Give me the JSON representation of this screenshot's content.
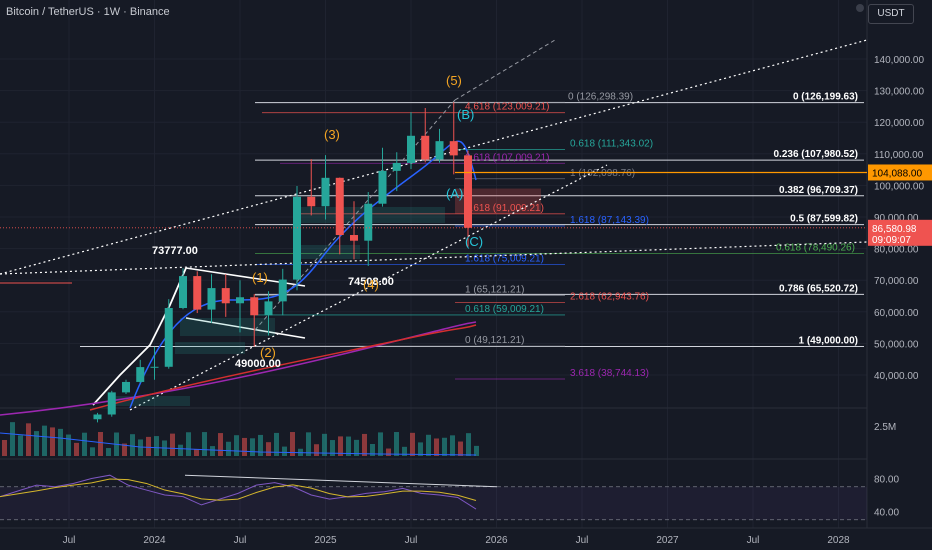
{
  "header": {
    "title": "Bitcoin / TetherUS · 1W · Binance",
    "currency": "USDT"
  },
  "colors": {
    "background": "#161a25",
    "up": "#26a69a",
    "down": "#ef5350",
    "ma_blue": "#2962ff",
    "ma_red": "#d32f2f",
    "ma_purple": "#9c27b0",
    "rsi": "#d4b62c",
    "wave_orange": "#f5a623",
    "wave_cyan": "#26c6da",
    "current_level": "#ff9800"
  },
  "chart_data": [
    {
      "type": "candlestick",
      "pair": "BTC/USDT",
      "interval": "1W",
      "ylim": [
        33000,
        150000
      ],
      "xlim": [
        "2023-06",
        "2028-03"
      ],
      "x_ticks": [
        "Jul",
        "2024",
        "Jul",
        "2025",
        "Jul",
        "2026",
        "Jul",
        "2027",
        "Jul",
        "2028"
      ],
      "y_ticks": [
        "140,000.00",
        "130,000.00",
        "120,000.00",
        "110,000.00",
        "100,000.00",
        "90,000.00",
        "80,000.00",
        "70,000.00",
        "60,000.00",
        "50,000.00",
        "40,000.00"
      ],
      "current_price": "86,580.98",
      "countdown": "09:09:07",
      "level_label": "104,088.00",
      "candles": [
        {
          "t": "2023-09",
          "o": 26000,
          "h": 28000,
          "l": 25000,
          "c": 27500
        },
        {
          "t": "2023-10",
          "o": 27500,
          "h": 35000,
          "l": 26800,
          "c": 34500
        },
        {
          "t": "2023-11",
          "o": 34500,
          "h": 38500,
          "l": 34000,
          "c": 37800
        },
        {
          "t": "2023-12",
          "o": 37800,
          "h": 44800,
          "l": 37500,
          "c": 42500
        },
        {
          "t": "2024-01",
          "o": 42500,
          "h": 48900,
          "l": 38500,
          "c": 42600
        },
        {
          "t": "2024-02",
          "o": 42600,
          "h": 64000,
          "l": 42000,
          "c": 61200
        },
        {
          "t": "2024-03",
          "o": 61200,
          "h": 73777,
          "l": 60800,
          "c": 71300
        },
        {
          "t": "2024-04",
          "o": 71300,
          "h": 72800,
          "l": 59600,
          "c": 60700
        },
        {
          "t": "2024-05",
          "o": 60700,
          "h": 71900,
          "l": 56500,
          "c": 67500
        },
        {
          "t": "2024-06",
          "o": 67500,
          "h": 71900,
          "l": 58400,
          "c": 62700
        },
        {
          "t": "2024-07",
          "o": 62700,
          "h": 70000,
          "l": 53500,
          "c": 64600
        },
        {
          "t": "2024-08",
          "o": 64600,
          "h": 65600,
          "l": 49000,
          "c": 58900
        },
        {
          "t": "2024-09",
          "o": 58900,
          "h": 66500,
          "l": 52500,
          "c": 63300
        },
        {
          "t": "2024-10",
          "o": 63300,
          "h": 73600,
          "l": 58900,
          "c": 70200
        },
        {
          "t": "2024-11",
          "o": 70200,
          "h": 99800,
          "l": 66800,
          "c": 96400
        },
        {
          "t": "2024-12",
          "o": 96400,
          "h": 108300,
          "l": 90500,
          "c": 93400
        },
        {
          "t": "2025-01",
          "o": 93400,
          "h": 109600,
          "l": 89200,
          "c": 102400
        },
        {
          "t": "2025-02",
          "o": 102400,
          "h": 102500,
          "l": 78200,
          "c": 84300
        },
        {
          "t": "2025-03",
          "o": 84300,
          "h": 95000,
          "l": 76600,
          "c": 82500
        },
        {
          "t": "2025-04",
          "o": 82500,
          "h": 97900,
          "l": 74508,
          "c": 94200
        },
        {
          "t": "2025-05",
          "o": 94200,
          "h": 111900,
          "l": 93300,
          "c": 104600
        },
        {
          "t": "2025-06",
          "o": 104600,
          "h": 110500,
          "l": 98200,
          "c": 107100
        },
        {
          "t": "2025-07",
          "o": 107100,
          "h": 123200,
          "l": 105200,
          "c": 115700
        },
        {
          "t": "2025-08",
          "o": 115700,
          "h": 124500,
          "l": 107300,
          "c": 108200
        },
        {
          "t": "2025-09",
          "o": 108200,
          "h": 117900,
          "l": 107200,
          "c": 114000
        },
        {
          "t": "2025-10",
          "o": 114000,
          "h": 126298,
          "l": 103500,
          "c": 109500
        },
        {
          "t": "2025-11",
          "o": 109500,
          "h": 111000,
          "l": 80600,
          "c": 86580.98
        }
      ],
      "fib_levels": [
        {
          "ratio": "0",
          "price": 126199.63,
          "label": "0 (126,199.63)"
        },
        {
          "ratio": "0.236",
          "price": 107980.52,
          "label": "0.236 (107,980.52)"
        },
        {
          "ratio": "0.382",
          "price": 96709.37,
          "label": "0.382 (96,709.37)"
        },
        {
          "ratio": "0.5",
          "price": 87599.82,
          "label": "0.5 (87,599.82)"
        },
        {
          "ratio": "0.786",
          "price": 65520.72,
          "label": "0.786 (65,520.72)"
        },
        {
          "ratio": "1",
          "price": 49000.0,
          "label": "1 (49,000.00)"
        }
      ],
      "fib_extension_labels": [
        {
          "price": 126298.39,
          "label": "0 (126,298.39)"
        },
        {
          "price": 123009.21,
          "label": "4.618 (123,009.21)"
        },
        {
          "price": 111343.02,
          "label": "0.618 (111,343.02)"
        },
        {
          "price": 107009.21,
          "label": "0.618 (107,009.21)"
        },
        {
          "price": 102098.76,
          "label": "1 (102,098.76)"
        },
        {
          "price": 91009.21,
          "label": "2.618 (91,009.21)"
        },
        {
          "price": 87143.39,
          "label": "1.618 (87,143.39)"
        },
        {
          "price": 78490.26,
          "label": "0.618 (78,490.26)"
        },
        {
          "price": 75009.21,
          "label": "1.618 (75,009.21)"
        },
        {
          "price": 65121.21,
          "label": "1 (65,121.21)"
        },
        {
          "price": 62943.76,
          "label": "2.618 (62,943.76)"
        },
        {
          "price": 59009.21,
          "label": "0.618 (59,009.21)"
        },
        {
          "price": 49121.21,
          "label": "0 (49,121.21)"
        },
        {
          "price": 38744.13,
          "label": "3.618 (38,744.13)"
        }
      ],
      "price_annotations": [
        "73777.00",
        "74508.00",
        "49000.00"
      ],
      "wave_labels": [
        "(1)",
        "(2)",
        "(3)",
        "(4)",
        "(5)",
        "(A)",
        "(B)",
        "(C)"
      ],
      "volume_axis_label": "2.5M",
      "rsi": {
        "ylim": [
          20,
          100
        ],
        "ticks": [
          "80.00",
          "40.00"
        ],
        "values": [
          58,
          65,
          72,
          70,
          74,
          80,
          84,
          72,
          66,
          60,
          58,
          48,
          55,
          62,
          72,
          75,
          70,
          60,
          55,
          58,
          62,
          64,
          68,
          62,
          60,
          57,
          43
        ]
      }
    }
  ]
}
